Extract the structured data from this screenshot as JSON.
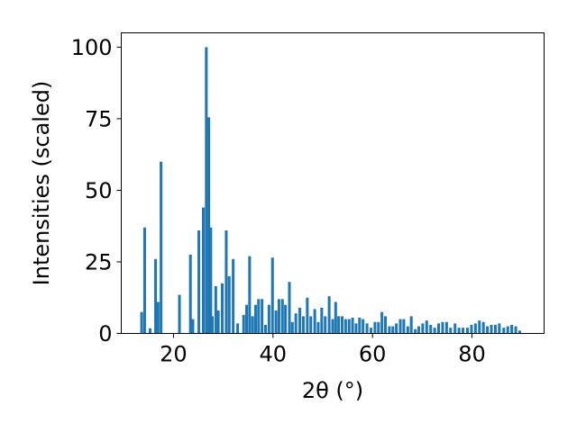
{
  "chart_data": {
    "type": "bar",
    "xlabel": "2θ (°)",
    "ylabel": "Intensities (scaled)",
    "xlim": [
      9.5,
      94.5
    ],
    "ylim": [
      0,
      105
    ],
    "x_ticks": [
      20,
      40,
      60,
      80
    ],
    "y_ticks": [
      0,
      25,
      50,
      75,
      100
    ],
    "grid": false,
    "bar_color": "#1f77b4",
    "bar_width": 0.55,
    "series": [
      {
        "x": [
          13.6,
          14.2,
          15.3,
          16.4,
          16.9,
          17.5,
          21.2,
          23.4,
          23.9,
          25.1,
          26.0,
          26.6,
          27.1,
          27.5,
          27.8,
          28.5,
          29.0,
          29.8,
          30.6,
          31.2,
          32.0,
          32.9,
          34.1,
          34.7,
          35.3,
          35.9,
          36.5,
          37.1,
          37.8,
          38.5,
          39.2,
          39.9,
          40.6,
          41.2,
          41.9,
          42.5,
          43.3,
          43.9,
          44.6,
          45.4,
          46.1,
          46.9,
          47.6,
          48.4,
          49.1,
          49.8,
          50.5,
          51.3,
          52.0,
          52.6,
          53.2,
          53.9,
          54.6,
          55.3,
          56.0,
          56.7,
          57.4,
          58.1,
          58.9,
          59.7,
          60.5,
          61.2,
          61.9,
          62.6,
          63.4,
          64.1,
          64.8,
          65.6,
          66.3,
          67.1,
          67.8,
          68.6,
          69.3,
          70.1,
          70.9,
          71.7,
          72.5,
          73.3,
          74.1,
          74.9,
          75.7,
          76.6,
          77.4,
          78.2,
          79.1,
          79.9,
          80.7,
          81.5,
          82.3,
          83.1,
          83.9,
          84.7,
          85.5,
          86.4,
          87.2,
          88.0,
          88.8,
          89.6
        ],
        "values": [
          7.5,
          37,
          1.8,
          26,
          11,
          60,
          13.5,
          27.5,
          5,
          36,
          44,
          100,
          75.5,
          37,
          6,
          16.5,
          8,
          17.5,
          36,
          20,
          26,
          3.5,
          6.5,
          10,
          27,
          6,
          10,
          12,
          12,
          3,
          10,
          26.5,
          8,
          12,
          12,
          10,
          18,
          4,
          7,
          9,
          6,
          12.5,
          6,
          8.5,
          4,
          9,
          6,
          13,
          5,
          11,
          6,
          6,
          5,
          5,
          5.5,
          3.5,
          5.5,
          5,
          3.5,
          2,
          4,
          4,
          7.5,
          6,
          2.5,
          2.5,
          3.5,
          5,
          5,
          2.5,
          6,
          1.5,
          2.5,
          3.5,
          4.5,
          3,
          2,
          3.5,
          4,
          4,
          2,
          3.5,
          2,
          2,
          2,
          3,
          3.5,
          4.5,
          4,
          2.5,
          3,
          3,
          3.5,
          2,
          2.5,
          3,
          2.5,
          1
        ]
      }
    ]
  }
}
